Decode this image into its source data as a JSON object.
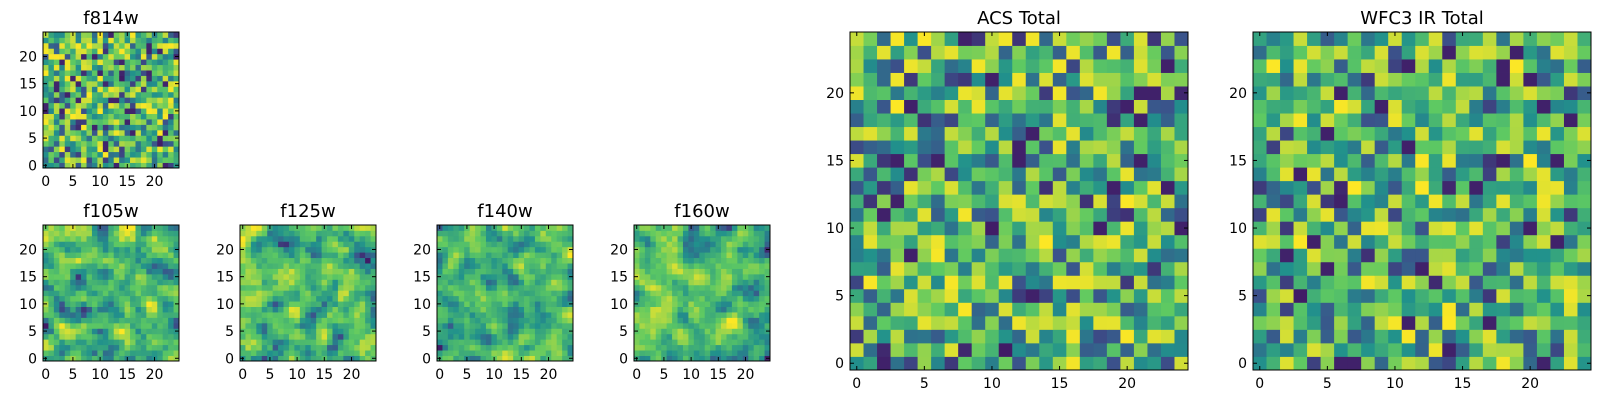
{
  "figure_title": "",
  "colormap": {
    "name": "viridis",
    "stops": [
      "#440154",
      "#3b528b",
      "#21918c",
      "#5ec962",
      "#fde725"
    ]
  },
  "frame_color": "#000000",
  "chart_data": [
    {
      "type": "heatmap",
      "id": "f814w",
      "title": "f814w",
      "grid_size": 25,
      "x_range": [
        -0.5,
        24.5
      ],
      "y_range": [
        -0.5,
        24.5
      ],
      "x_ticks": [
        0,
        5,
        10,
        15,
        20
      ],
      "y_ticks": [
        0,
        5,
        10,
        15,
        20
      ],
      "texture": "fine-noise",
      "cell_values_legible": false,
      "seed": 11
    },
    {
      "type": "heatmap",
      "id": "f105w",
      "title": "f105w",
      "grid_size": 25,
      "x_range": [
        -0.5,
        24.5
      ],
      "y_range": [
        -0.5,
        24.5
      ],
      "x_ticks": [
        0,
        5,
        10,
        15,
        20
      ],
      "y_ticks": [
        0,
        5,
        10,
        15,
        20
      ],
      "texture": "smooth-noise",
      "cell_values_legible": false,
      "seed": 23
    },
    {
      "type": "heatmap",
      "id": "f125w",
      "title": "f125w",
      "grid_size": 25,
      "x_range": [
        -0.5,
        24.5
      ],
      "y_range": [
        -0.5,
        24.5
      ],
      "x_ticks": [
        0,
        5,
        10,
        15,
        20
      ],
      "y_ticks": [
        0,
        5,
        10,
        15,
        20
      ],
      "texture": "smooth-noise",
      "cell_values_legible": false,
      "seed": 37
    },
    {
      "type": "heatmap",
      "id": "f140w",
      "title": "f140w",
      "grid_size": 25,
      "x_range": [
        -0.5,
        24.5
      ],
      "y_range": [
        -0.5,
        24.5
      ],
      "x_ticks": [
        0,
        5,
        10,
        15,
        20
      ],
      "y_ticks": [
        0,
        5,
        10,
        15,
        20
      ],
      "texture": "smooth-noise",
      "cell_values_legible": false,
      "seed": 41
    },
    {
      "type": "heatmap",
      "id": "f160w",
      "title": "f160w",
      "grid_size": 25,
      "x_range": [
        -0.5,
        24.5
      ],
      "y_range": [
        -0.5,
        24.5
      ],
      "x_ticks": [
        0,
        5,
        10,
        15,
        20
      ],
      "y_ticks": [
        0,
        5,
        10,
        15,
        20
      ],
      "texture": "smooth-noise",
      "cell_values_legible": false,
      "seed": 53
    },
    {
      "type": "heatmap",
      "id": "acs-total",
      "title": "ACS Total",
      "grid_size": 25,
      "x_range": [
        -0.5,
        24.5
      ],
      "y_range": [
        -0.5,
        24.5
      ],
      "x_ticks": [
        0,
        5,
        10,
        15,
        20
      ],
      "y_ticks": [
        0,
        5,
        10,
        15,
        20
      ],
      "texture": "blocky-noise",
      "cell_values_legible": false,
      "seed": 67
    },
    {
      "type": "heatmap",
      "id": "wfc3-ir-total",
      "title": "WFC3 IR Total",
      "grid_size": 25,
      "x_range": [
        -0.5,
        24.5
      ],
      "y_range": [
        -0.5,
        24.5
      ],
      "x_ticks": [
        0,
        5,
        10,
        15,
        20
      ],
      "y_ticks": [
        0,
        5,
        10,
        15,
        20
      ],
      "texture": "blocky-noise",
      "cell_values_legible": false,
      "seed": 79
    }
  ]
}
